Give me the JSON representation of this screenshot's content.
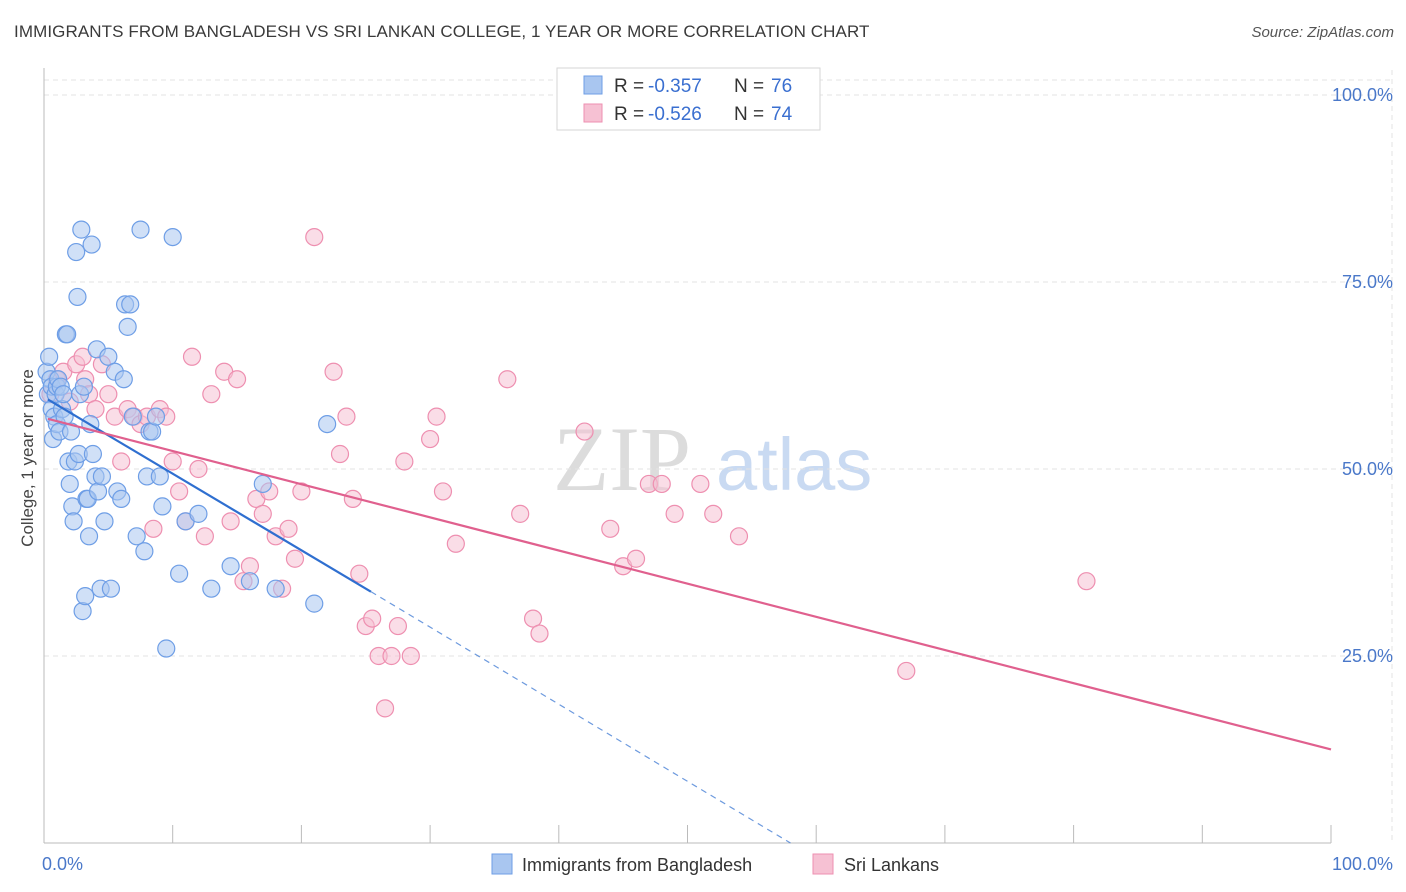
{
  "header": {
    "title": "IMMIGRANTS FROM BANGLADESH VS SRI LANKAN COLLEGE, 1 YEAR OR MORE CORRELATION CHART",
    "source": "Source: ZipAtlas.com"
  },
  "watermark": {
    "zip": "ZIP",
    "atlas": "atlas"
  },
  "colors": {
    "blue": "#6e9ee6",
    "blue_fill": "#a9c6f0",
    "blue_line": "#2f6fd0",
    "pink": "#ee8fb0",
    "pink_fill": "#f6c1d3",
    "pink_line": "#e0608e",
    "axis_tick": "#4a78c9",
    "grid": "#e3e3e3"
  },
  "legend": {
    "rows": [
      {
        "r_label": "R =",
        "r_value": "-0.357",
        "n_label": "N =",
        "n_value": "76"
      },
      {
        "r_label": "R =",
        "r_value": "-0.526",
        "n_label": "N =",
        "n_value": "74"
      }
    ]
  },
  "chart_data": {
    "type": "scatter",
    "title": "IMMIGRANTS FROM BANGLADESH VS SRI LANKAN COLLEGE, 1 YEAR OR MORE CORRELATION CHART",
    "xlabel": "",
    "ylabel": "College, 1 year or more",
    "xlim": [
      0,
      100
    ],
    "ylim": [
      0,
      102
    ],
    "x_tick_labels": [
      "0.0%",
      "100.0%"
    ],
    "y_ticks": [
      25,
      50,
      75,
      100
    ],
    "y_tick_labels": [
      "25.0%",
      "50.0%",
      "75.0%",
      "100.0%"
    ],
    "legend_position": "top-center",
    "series": [
      {
        "name": "Immigrants from Bangladesh",
        "R": -0.357,
        "N": 76,
        "trend": {
          "x0": 0.3,
          "y0": 59.3,
          "x1": 25.4,
          "y1": 33.6,
          "dash_to_x": 58.0,
          "dash_to_y": 0
        },
        "points": [
          [
            0.2,
            63
          ],
          [
            0.3,
            60
          ],
          [
            0.4,
            65
          ],
          [
            0.5,
            62
          ],
          [
            0.6,
            61
          ],
          [
            0.6,
            58
          ],
          [
            0.7,
            54
          ],
          [
            0.8,
            57
          ],
          [
            0.9,
            60
          ],
          [
            1.0,
            61
          ],
          [
            1.0,
            56
          ],
          [
            1.1,
            62
          ],
          [
            1.2,
            55
          ],
          [
            1.3,
            61
          ],
          [
            1.4,
            58
          ],
          [
            1.5,
            60
          ],
          [
            1.6,
            57
          ],
          [
            1.7,
            68
          ],
          [
            1.8,
            68
          ],
          [
            1.9,
            51
          ],
          [
            2.0,
            48
          ],
          [
            2.1,
            55
          ],
          [
            2.2,
            45
          ],
          [
            2.3,
            43
          ],
          [
            2.4,
            51
          ],
          [
            2.5,
            79
          ],
          [
            2.6,
            73
          ],
          [
            2.7,
            52
          ],
          [
            2.8,
            60
          ],
          [
            2.9,
            82
          ],
          [
            3.0,
            31
          ],
          [
            3.1,
            61
          ],
          [
            3.2,
            33
          ],
          [
            3.3,
            46
          ],
          [
            3.4,
            46
          ],
          [
            3.5,
            41
          ],
          [
            3.6,
            56
          ],
          [
            3.7,
            80
          ],
          [
            3.8,
            52
          ],
          [
            4.0,
            49
          ],
          [
            4.1,
            66
          ],
          [
            4.2,
            47
          ],
          [
            4.4,
            34
          ],
          [
            4.5,
            49
          ],
          [
            4.7,
            43
          ],
          [
            5.0,
            65
          ],
          [
            5.2,
            34
          ],
          [
            5.5,
            63
          ],
          [
            5.7,
            47
          ],
          [
            6.0,
            46
          ],
          [
            6.2,
            62
          ],
          [
            6.3,
            72
          ],
          [
            6.5,
            69
          ],
          [
            6.7,
            72
          ],
          [
            6.9,
            57
          ],
          [
            7.2,
            41
          ],
          [
            7.5,
            82
          ],
          [
            7.8,
            39
          ],
          [
            8.0,
            49
          ],
          [
            8.2,
            55
          ],
          [
            8.4,
            55
          ],
          [
            8.7,
            57
          ],
          [
            9.0,
            49
          ],
          [
            9.2,
            45
          ],
          [
            9.5,
            26
          ],
          [
            10.0,
            81
          ],
          [
            10.5,
            36
          ],
          [
            11.0,
            43
          ],
          [
            12.0,
            44
          ],
          [
            13.0,
            34
          ],
          [
            16.0,
            35
          ],
          [
            17.0,
            48
          ],
          [
            18.0,
            34
          ],
          [
            22.0,
            56
          ],
          [
            21.0,
            32
          ],
          [
            14.5,
            37
          ]
        ]
      },
      {
        "name": "Sri Lankans",
        "R": -0.526,
        "N": 74,
        "trend": {
          "x0": 0.3,
          "y0": 56.7,
          "x1": 100.0,
          "y1": 12.5
        },
        "points": [
          [
            0.5,
            60
          ],
          [
            1.0,
            62
          ],
          [
            1.5,
            63
          ],
          [
            2.0,
            59
          ],
          [
            2.5,
            64
          ],
          [
            3.0,
            65
          ],
          [
            3.2,
            62
          ],
          [
            3.5,
            60
          ],
          [
            4.0,
            58
          ],
          [
            4.5,
            64
          ],
          [
            5.0,
            60
          ],
          [
            5.5,
            57
          ],
          [
            6.0,
            51
          ],
          [
            6.5,
            58
          ],
          [
            7.0,
            57
          ],
          [
            7.5,
            56
          ],
          [
            8.0,
            57
          ],
          [
            8.5,
            42
          ],
          [
            9.0,
            58
          ],
          [
            9.5,
            57
          ],
          [
            10.0,
            51
          ],
          [
            10.5,
            47
          ],
          [
            11.0,
            43
          ],
          [
            11.5,
            65
          ],
          [
            12.0,
            50
          ],
          [
            12.5,
            41
          ],
          [
            13.0,
            60
          ],
          [
            14.0,
            63
          ],
          [
            14.5,
            43
          ],
          [
            15.0,
            62
          ],
          [
            15.5,
            35
          ],
          [
            16.0,
            37
          ],
          [
            16.5,
            46
          ],
          [
            17.0,
            44
          ],
          [
            17.5,
            47
          ],
          [
            18.0,
            41
          ],
          [
            18.5,
            34
          ],
          [
            19.0,
            42
          ],
          [
            19.5,
            38
          ],
          [
            20.0,
            47
          ],
          [
            21.0,
            81
          ],
          [
            22.5,
            63
          ],
          [
            23.0,
            52
          ],
          [
            23.5,
            57
          ],
          [
            24.0,
            46
          ],
          [
            24.5,
            36
          ],
          [
            25.0,
            29
          ],
          [
            25.5,
            30
          ],
          [
            26.0,
            25
          ],
          [
            26.5,
            18
          ],
          [
            27.0,
            25
          ],
          [
            27.5,
            29
          ],
          [
            28.0,
            51
          ],
          [
            28.5,
            25
          ],
          [
            30.0,
            54
          ],
          [
            30.5,
            57
          ],
          [
            31.0,
            47
          ],
          [
            32.0,
            40
          ],
          [
            36.0,
            62
          ],
          [
            37.0,
            44
          ],
          [
            38.0,
            30
          ],
          [
            38.5,
            28
          ],
          [
            42.0,
            55
          ],
          [
            44.0,
            42
          ],
          [
            45.0,
            37
          ],
          [
            46.0,
            38
          ],
          [
            47.0,
            48
          ],
          [
            48.0,
            48
          ],
          [
            49.0,
            44
          ],
          [
            51.0,
            48
          ],
          [
            52.0,
            44
          ],
          [
            54.0,
            41
          ],
          [
            81.0,
            35
          ],
          [
            67.0,
            23
          ]
        ]
      }
    ]
  }
}
